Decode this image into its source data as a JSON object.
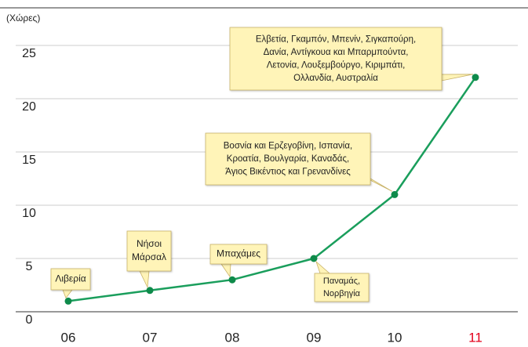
{
  "chart_data": {
    "type": "line",
    "y_label": "(Χώρες)",
    "categories": [
      "06",
      "07",
      "08",
      "09",
      "10",
      "11"
    ],
    "values": [
      1,
      2,
      3,
      5,
      11,
      22
    ],
    "color": "#1a9e5c",
    "marker_color": "#0e8a4a",
    "highlight_category": 5,
    "highlight_color": "#e3001b",
    "ylim": [
      0,
      25
    ],
    "yticks": [
      0,
      5,
      10,
      15,
      20,
      25
    ],
    "grid": true,
    "annotations": [
      {
        "point": 0,
        "lines": [
          "Λιβερία"
        ]
      },
      {
        "point": 1,
        "lines": [
          "Νήσοι",
          "Μάρσαλ"
        ]
      },
      {
        "point": 2,
        "lines": [
          "Μπαχάμες"
        ]
      },
      {
        "point": 3,
        "lines": [
          "Παναμάς,",
          "Νορβηγία"
        ]
      },
      {
        "point": 4,
        "lines": [
          "Βοσνία και Ερζεγοβίνη, Ισπανία,",
          "Κροατία, Βουλγαρία, Καναδάς,",
          "Άγιος Βικέντιος και Γρενανδίνες"
        ]
      },
      {
        "point": 5,
        "lines": [
          "Ελβετία, Γκαμπόν, Μπενίν, Σιγκαπούρη,",
          "Δανία, Αντίγκουα και Μπαρμπούντα,",
          "Λετονία, Λουξεμβούργο, Κιριμπάτι,",
          "Ολλανδία, Αυστραλία"
        ]
      }
    ]
  }
}
